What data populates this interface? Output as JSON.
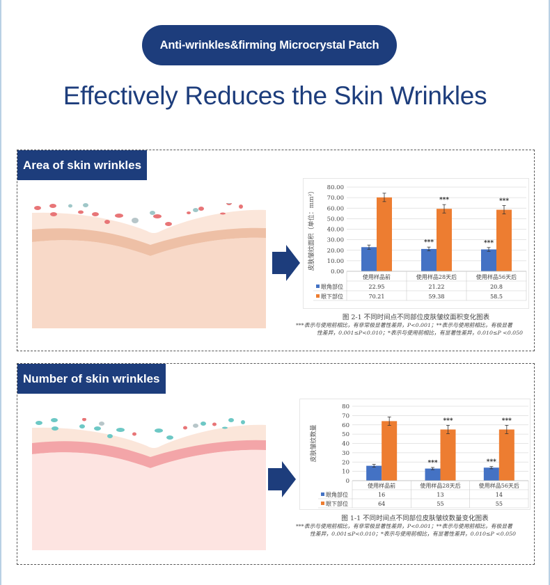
{
  "header": {
    "badge": "Anti-wrinkles&firming Microcrystal Patch",
    "title": "Effectively Reduces the Skin Wrinkles"
  },
  "colors": {
    "brand_navy": "#1d3d7c",
    "series_blue": "#4472c4",
    "series_orange": "#ed7d31",
    "skin_area": "#f8d9c8",
    "skin_number": "#fde4e1"
  },
  "icons": [
    "arrow-right-icon",
    "legend-square-icon"
  ],
  "chart_data": [
    {
      "type": "bar",
      "panel_label": "Area of skin wrinkles",
      "ylabel": "皮肤皱纹面积（单位：mm²）",
      "ylim": [
        0,
        80
      ],
      "yticks": [
        "0.00",
        "10.00",
        "20.00",
        "30.00",
        "40.00",
        "50.00",
        "60.00",
        "70.00",
        "80.00"
      ],
      "grid": true,
      "categories": [
        "使用样品前",
        "使用样品28天后",
        "使用样品56天后"
      ],
      "series": [
        {
          "name": "眼角部位",
          "values": [
            22.95,
            21.22,
            20.8
          ],
          "display": [
            "22.95",
            "21.22",
            "20.8"
          ],
          "error": [
            2.0,
            1.8,
            1.8
          ],
          "sig": [
            "",
            "***",
            "***"
          ]
        },
        {
          "name": "眼下部位",
          "values": [
            70.21,
            59.38,
            58.5
          ],
          "display": [
            "70.21",
            "59.38",
            "58.5"
          ],
          "error": [
            4.0,
            4.0,
            4.0
          ],
          "sig": [
            "",
            "***",
            "***"
          ]
        }
      ],
      "legend": "data-table-below",
      "caption": "图 2-1 不同时间点不同部位皮肤皱纹面积变化图表",
      "note_line1": "***表示与使用前相比，有非常极显著性差异，P<0.001；**表示与使用前相比，有极显著",
      "note_line2": "性差异，0.001≤P<0.010；*表示与使用前相比，有显著性差异，0.010≤P <0.050"
    },
    {
      "type": "bar",
      "panel_label": "Number of skin wrinkles",
      "ylabel": "皮肤皱纹数量",
      "ylim": [
        0,
        80
      ],
      "yticks": [
        "0",
        "10",
        "20",
        "30",
        "40",
        "50",
        "60",
        "70",
        "80"
      ],
      "grid": true,
      "categories": [
        "使用样品前",
        "使用样品28天后",
        "使用样品56天后"
      ],
      "series": [
        {
          "name": "眼角部位",
          "values": [
            16,
            13,
            14
          ],
          "display": [
            "16",
            "13",
            "14"
          ],
          "error": [
            1.5,
            1.2,
            1.2
          ],
          "sig": [
            "",
            "***",
            "***"
          ]
        },
        {
          "name": "眼下部位",
          "values": [
            64,
            55,
            55
          ],
          "display": [
            "64",
            "55",
            "55"
          ],
          "error": [
            4.5,
            4.5,
            4.5
          ],
          "sig": [
            "",
            "***",
            "***"
          ]
        }
      ],
      "legend": "data-table-below",
      "caption": "图 1-1 不同时间点不同部位皮肤皱纹数量变化图表",
      "note_line1": "***表示与使用前相比，有非常极显著性差异，P<0.001；**表示与使用前相比，有极显著",
      "note_line2": "性差异，0.001≤P<0.010；*表示与使用前相比，有显著性差异，0.010≤P <0.050"
    }
  ]
}
